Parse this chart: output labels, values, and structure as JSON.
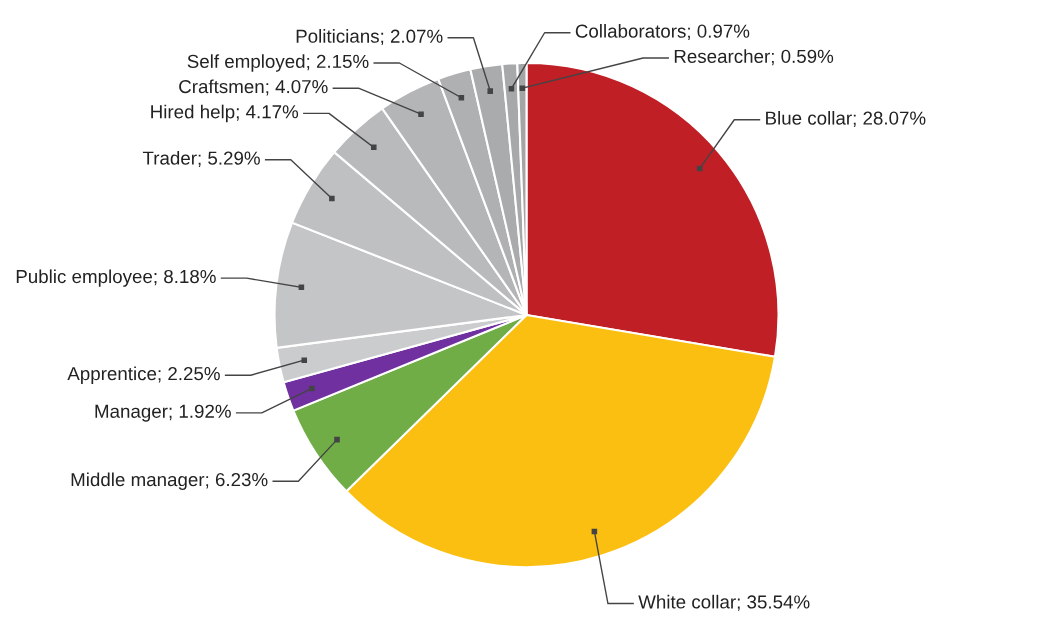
{
  "chart_data": {
    "type": "pie",
    "categories": [
      "Blue collar",
      "White collar",
      "Middle manager",
      "Manager",
      "Apprentice",
      "Public employee",
      "Trader",
      "Hired help",
      "Craftsmen",
      "Self employed",
      "Politicians",
      "Collaborators",
      "Researcher"
    ],
    "values": [
      28.07,
      35.54,
      6.23,
      1.92,
      2.25,
      8.18,
      5.29,
      4.17,
      4.07,
      2.15,
      2.07,
      0.97,
      0.59
    ],
    "value_labels": [
      "28.07%",
      "35.54%",
      "6.23%",
      "1.92%",
      "2.25%",
      "8.18%",
      "5.29%",
      "4.17%",
      "4.07%",
      "2.15%",
      "2.07%",
      "0.97%",
      "0.59%"
    ],
    "colors": [
      "#c01f26",
      "#fbbf12",
      "#70ad47",
      "#7030a0",
      "#cbcccd",
      "#c4c5c7",
      "#bfc0c2",
      "#b9babc",
      "#b4b5b7",
      "#afb0b2",
      "#aaabad",
      "#a7a8aa",
      "#a4a5a7"
    ],
    "legend": false
  }
}
